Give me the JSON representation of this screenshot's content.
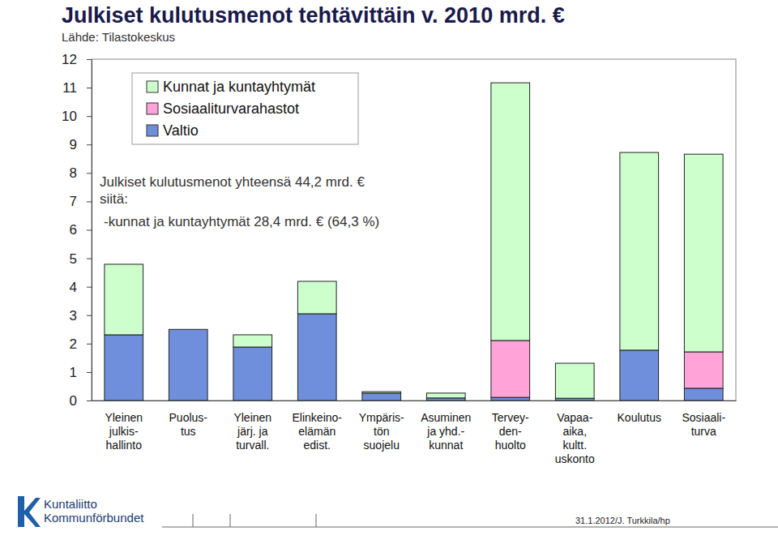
{
  "chart_data": {
    "type": "bar",
    "title": "Julkiset kulutusmenot tehtävittäin v. 2010 mrd. €",
    "subtitle": "Lähde: Tilastokeskus",
    "categories": [
      "Yleinen\njulkis-\nhallinto",
      "Puolus-\ntus",
      "Yleinen\njärj. ja\nturvall.",
      "Elinkeino-\nelämän\nedist.",
      "Ympäris-\ntön\nsuojelu",
      "Asuminen\nja yhd.-\nkunnat",
      "Tervey-\nden-\nhuolto",
      "Vapaa-\naika,\nkultt.\nuskonto",
      "Koulutus",
      "Sosiaali-\nturva"
    ],
    "series": [
      {
        "name": "Valtio",
        "color": "#6f8fdc",
        "values": [
          2.31,
          2.5,
          1.88,
          3.05,
          0.26,
          0.09,
          0.11,
          0.08,
          1.77,
          0.43
        ]
      },
      {
        "name": "Sosiaaliturvarahastot",
        "color": "#ffa3d8",
        "values": [
          0,
          0,
          0,
          0,
          0,
          0,
          2.0,
          0,
          0,
          1.28
        ]
      },
      {
        "name": "Kunnat ja kuntayhtymät",
        "color": "#ccffcc",
        "values": [
          2.48,
          0,
          0.43,
          1.14,
          0.05,
          0.17,
          9.06,
          1.23,
          6.95,
          6.95
        ]
      }
    ],
    "stacked": true,
    "ylim": [
      0,
      12
    ],
    "yticks": [
      0,
      1,
      2,
      3,
      4,
      5,
      6,
      7,
      8,
      9,
      10,
      11,
      12
    ],
    "grid": false,
    "legend": "upper left",
    "annotations": [
      "Julkiset kulutusmenot yhteensä 44,2 mrd. €",
      "siitä:",
      "-kunnat ja kuntayhtymät 28,4 mrd. € (64,3 %)"
    ]
  },
  "footer": {
    "logo": [
      "Kuntaliitto",
      "Kommunförbundet"
    ],
    "credit": "31.1.2012/J. Turkkila/hp"
  }
}
